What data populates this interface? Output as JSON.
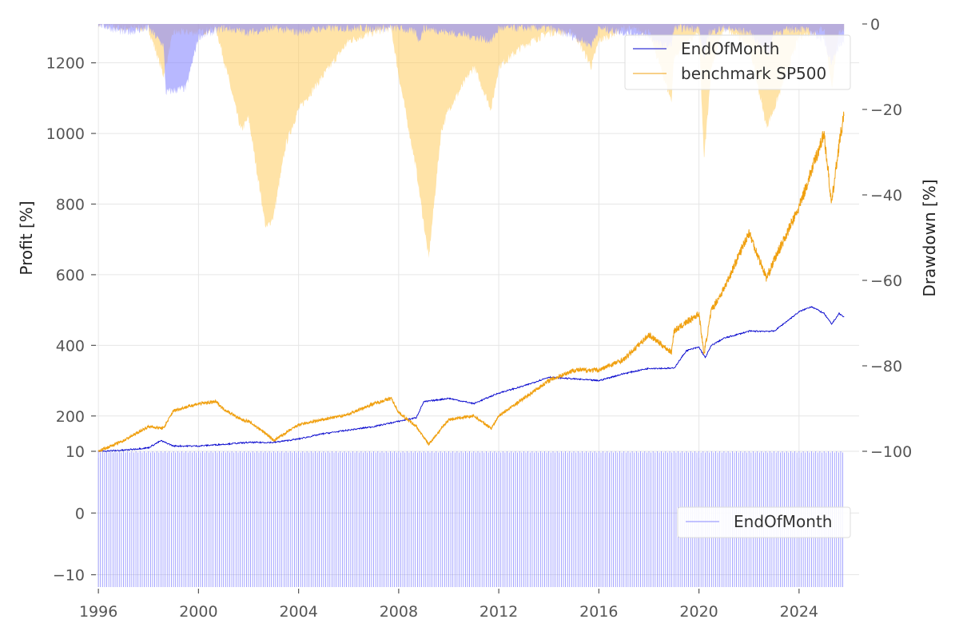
{
  "chart_data": [
    {
      "type": "line",
      "title": "",
      "xlabel": "",
      "ylabel": "Profit [%]",
      "y2label": "Drawdown [%]",
      "x_ticks": [
        "1996",
        "2000",
        "2004",
        "2008",
        "2012",
        "2016",
        "2020",
        "2024"
      ],
      "y_ticks": [
        "200",
        "400",
        "600",
        "800",
        "1000",
        "1200"
      ],
      "y2_ticks": [
        "0",
        "−20",
        "−40",
        "−60",
        "−80",
        "−100"
      ],
      "xlim": [
        1995.9,
        2026.4
      ],
      "ylim": [
        100,
        1310
      ],
      "y2lim": [
        -100,
        0
      ],
      "grid": true,
      "legend_position": "top-right",
      "series": [
        {
          "name": "EndOfMonth",
          "color": "#0000cc",
          "x": [
            1996.0,
            1997.0,
            1998.0,
            1998.5,
            1999.0,
            2000.0,
            2001.0,
            2002.0,
            2003.0,
            2004.0,
            2005.0,
            2006.0,
            2007.0,
            2008.0,
            2008.7,
            2009.0,
            2010.0,
            2011.0,
            2012.0,
            2013.0,
            2014.0,
            2015.0,
            2016.0,
            2017.0,
            2018.0,
            2019.0,
            2019.5,
            2020.0,
            2020.25,
            2020.5,
            2021.0,
            2022.0,
            2023.0,
            2024.0,
            2024.5,
            2025.0,
            2025.3,
            2025.6,
            2025.8
          ],
          "y": [
            100,
            103,
            110,
            130,
            115,
            115,
            120,
            125,
            125,
            135,
            150,
            160,
            170,
            185,
            195,
            240,
            250,
            235,
            265,
            285,
            310,
            305,
            300,
            320,
            335,
            335,
            385,
            395,
            365,
            400,
            420,
            440,
            440,
            495,
            510,
            490,
            460,
            490,
            480
          ]
        },
        {
          "name": "benchmark SP500",
          "color": "#f0a010",
          "x": [
            1996.0,
            1997.0,
            1998.0,
            1998.6,
            1999.0,
            2000.0,
            2000.7,
            2001.0,
            2001.7,
            2002.0,
            2002.7,
            2003.0,
            2004.0,
            2005.0,
            2006.0,
            2007.0,
            2007.7,
            2008.0,
            2008.7,
            2009.2,
            2010.0,
            2011.0,
            2011.7,
            2012.0,
            2013.0,
            2014.0,
            2015.0,
            2016.0,
            2017.0,
            2018.0,
            2018.9,
            2019.0,
            2020.0,
            2020.2,
            2020.5,
            2021.0,
            2022.0,
            2022.7,
            2023.0,
            2024.0,
            2025.0,
            2025.3,
            2025.6,
            2025.8
          ],
          "y": [
            100,
            130,
            170,
            165,
            215,
            235,
            240,
            220,
            190,
            185,
            150,
            130,
            175,
            190,
            205,
            235,
            250,
            210,
            170,
            120,
            190,
            200,
            165,
            200,
            250,
            300,
            330,
            330,
            360,
            430,
            380,
            440,
            490,
            375,
            500,
            560,
            720,
            590,
            640,
            790,
            1000,
            800,
            970,
            1050
          ]
        }
      ],
      "drawdown_series": [
        {
          "name": "EndOfMonth drawdown",
          "color": "#8888ff",
          "x": [
            1996.0,
            1997.0,
            1998.0,
            1998.6,
            1998.7,
            1999.5,
            2000.0,
            2001.0,
            2002.0,
            2003.0,
            2004.0,
            2005.0,
            2008.0,
            2008.7,
            2008.8,
            2009.0,
            2010.0,
            2011.0,
            2011.7,
            2012.0,
            2014.0,
            2015.0,
            2015.7,
            2016.0,
            2018.0,
            2018.5,
            2018.9,
            2019.0,
            2020.0,
            2020.2,
            2020.4,
            2021.0,
            2022.0,
            2022.8,
            2023.0,
            2024.0,
            2024.5,
            2025.0,
            2025.3,
            2025.6,
            2025.8
          ],
          "y": [
            0,
            -2,
            -1,
            -5,
            -16,
            -15,
            -3,
            -1,
            -2,
            -1,
            -2,
            -1,
            -1,
            -2,
            -4,
            -1,
            -2,
            -3,
            -4,
            -1,
            -1,
            -3,
            -5,
            -1,
            -3,
            -5,
            -5,
            -1,
            -1,
            -8,
            -2,
            -1,
            -2,
            -7,
            -2,
            -1,
            -2,
            -4,
            -9,
            -5,
            -5
          ]
        },
        {
          "name": "benchmark SP500 drawdown",
          "color": "#ffc850",
          "x": [
            1996.0,
            1997.0,
            1998.0,
            1998.6,
            1999.0,
            2000.0,
            2000.7,
            2001.0,
            2001.7,
            2002.0,
            2002.7,
            2003.0,
            2003.5,
            2004.0,
            2005.0,
            2006.0,
            2007.0,
            2007.7,
            2008.0,
            2008.7,
            2009.2,
            2009.7,
            2010.0,
            2011.0,
            2011.7,
            2012.0,
            2013.0,
            2014.0,
            2015.0,
            2015.7,
            2016.0,
            2017.0,
            2018.0,
            2018.9,
            2019.0,
            2020.0,
            2020.2,
            2020.5,
            2021.0,
            2022.0,
            2022.7,
            2023.0,
            2024.0,
            2025.0,
            2025.3,
            2025.6,
            2025.8
          ],
          "y": [
            0,
            -1,
            -1,
            -12,
            -2,
            -2,
            -1,
            -8,
            -25,
            -22,
            -48,
            -45,
            -28,
            -20,
            -12,
            -4,
            -2,
            -1,
            -12,
            -34,
            -55,
            -25,
            -20,
            -10,
            -20,
            -10,
            -5,
            -2,
            -2,
            -10,
            -4,
            -1,
            -2,
            -18,
            -8,
            -2,
            -32,
            -10,
            -1,
            -5,
            -24,
            -20,
            -3,
            -1,
            -15,
            -2,
            -1
          ]
        }
      ]
    },
    {
      "type": "line",
      "title": "",
      "xlabel": "",
      "ylabel": "",
      "y_ticks": [
        "10",
        "0",
        "−10"
      ],
      "ylim": [
        -12,
        10
      ],
      "grid": true,
      "legend_position": "center-right",
      "series": [
        {
          "name": "EndOfMonth",
          "color": "#6a6aff",
          "note_values": "monthly trade markers alternating between +10 and -12 from 1996 to 2025.8"
        }
      ]
    }
  ]
}
